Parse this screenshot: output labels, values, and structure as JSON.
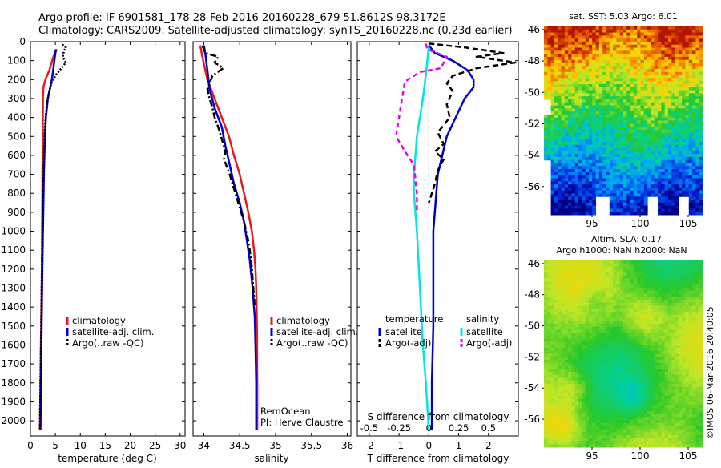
{
  "header": {
    "line1": "Argo profile: IF 6901581_178 28-Feb-2016 20160228_679 51.8612S 98.3172E",
    "line2": "Climatology: CARS2009. Satellite-adjusted climatology: synTS_20160228.nc (0.23d earlier)"
  },
  "colors": {
    "climatology": "#e41a1c",
    "satellite": "#0000cc",
    "argo": "#000000",
    "sal_satellite": "#00e5e5",
    "sal_argo": "#ee00ee"
  },
  "legend": {
    "climatology": "climatology",
    "satellite_adj": "satellite-adj. clim.",
    "argo_raw": "Argo(..raw -QC)",
    "temperature_head": "temperature",
    "salinity_head": "salinity",
    "satellite": "satellite",
    "argo_adj": "Argo(-adj)"
  },
  "credits": {
    "line1": "RemOcean",
    "line2": "PI: Herve Claustre",
    "stamp": "©IMOS 06-Mar-2016 20:40:05"
  },
  "chart_data": [
    {
      "id": "temperature",
      "type": "line",
      "xlabel": "temperature (deg C)",
      "xlim": [
        0,
        31
      ],
      "xticks": [
        "0",
        "5",
        "10",
        "15",
        "20",
        "25",
        "30"
      ],
      "xtick_values": [
        0,
        5,
        10,
        15,
        20,
        25,
        30
      ],
      "ylim": [
        2080,
        0
      ],
      "yticks": [
        0,
        100,
        200,
        300,
        400,
        500,
        600,
        700,
        800,
        900,
        1000,
        1100,
        1200,
        1300,
        1400,
        1500,
        1600,
        1700,
        1800,
        1900,
        2000
      ],
      "series": [
        {
          "name": "climatology",
          "color": "#e41a1c",
          "points": [
            [
              5.3,
              40
            ],
            [
              4.6,
              80
            ],
            [
              3.8,
              150
            ],
            [
              3.0,
              200
            ],
            [
              2.6,
              240
            ],
            [
              2.5,
              300
            ],
            [
              2.45,
              500
            ],
            [
              2.4,
              800
            ],
            [
              2.3,
              1200
            ],
            [
              2.1,
              1600
            ],
            [
              1.9,
              2050
            ]
          ]
        },
        {
          "name": "satellite-adj. clim.",
          "color": "#0000cc",
          "points": [
            [
              5.1,
              40
            ],
            [
              4.9,
              80
            ],
            [
              4.7,
              120
            ],
            [
              4.3,
              200
            ],
            [
              3.9,
              250
            ],
            [
              3.5,
              300
            ],
            [
              3.1,
              400
            ],
            [
              2.9,
              500
            ],
            [
              2.7,
              700
            ],
            [
              2.5,
              1000
            ],
            [
              2.4,
              1200
            ],
            [
              2.2,
              1600
            ],
            [
              2.0,
              2050
            ]
          ]
        },
        {
          "name": "Argo(..raw -QC)",
          "color": "#000000",
          "dash": "2,2",
          "points": [
            [
              6.4,
              15
            ],
            [
              7.1,
              30
            ],
            [
              6.7,
              50
            ],
            [
              6.5,
              80
            ],
            [
              7.1,
              110
            ],
            [
              6.2,
              140
            ],
            [
              5.0,
              180
            ],
            [
              4.2,
              220
            ],
            [
              3.6,
              280
            ],
            [
              3.2,
              350
            ],
            [
              2.9,
              450
            ],
            [
              2.7,
              600
            ],
            [
              2.5,
              800
            ],
            [
              2.4,
              1000
            ],
            [
              2.3,
              1200
            ],
            [
              2.2,
              1400
            ],
            [
              2.0,
              1800
            ],
            [
              1.9,
              2050
            ]
          ]
        }
      ],
      "legend_entries": [
        "climatology",
        "satellite-adj. clim.",
        "Argo(..raw -QC)"
      ]
    },
    {
      "id": "salinity",
      "type": "line",
      "xlabel": "salinity",
      "xlim": [
        33.85,
        36.05
      ],
      "xticks": [
        "34",
        "34.5",
        "35",
        "35.5",
        "36"
      ],
      "xtick_values": [
        34,
        34.5,
        35,
        35.5,
        36
      ],
      "ylim": [
        2080,
        0
      ],
      "series": [
        {
          "name": "climatology",
          "color": "#e41a1c",
          "points": [
            [
              33.95,
              20
            ],
            [
              33.98,
              80
            ],
            [
              34.05,
              200
            ],
            [
              34.15,
              300
            ],
            [
              34.25,
              400
            ],
            [
              34.35,
              500
            ],
            [
              34.42,
              600
            ],
            [
              34.5,
              700
            ],
            [
              34.56,
              800
            ],
            [
              34.62,
              900
            ],
            [
              34.67,
              1000
            ],
            [
              34.7,
              1100
            ],
            [
              34.72,
              1200
            ],
            [
              34.73,
              1300
            ],
            [
              34.74,
              1500
            ],
            [
              34.745,
              1800
            ],
            [
              34.745,
              2050
            ]
          ]
        },
        {
          "name": "satellite-adj. clim.",
          "color": "#0000cc",
          "points": [
            [
              33.98,
              20
            ],
            [
              34.02,
              60
            ],
            [
              34.05,
              150
            ],
            [
              34.08,
              250
            ],
            [
              34.15,
              350
            ],
            [
              34.25,
              450
            ],
            [
              34.3,
              550
            ],
            [
              34.36,
              650
            ],
            [
              34.42,
              750
            ],
            [
              34.5,
              850
            ],
            [
              34.56,
              950
            ],
            [
              34.6,
              1050
            ],
            [
              34.64,
              1150
            ],
            [
              34.68,
              1300
            ],
            [
              34.71,
              1450
            ],
            [
              34.72,
              1600
            ],
            [
              34.73,
              1800
            ],
            [
              34.73,
              2050
            ]
          ]
        },
        {
          "name": "Argo(..raw -QC)",
          "color": "#000000",
          "dash": "8,3,2,3",
          "points": [
            [
              34.0,
              20
            ],
            [
              34.02,
              60
            ],
            [
              34.2,
              80
            ],
            [
              34.15,
              110
            ],
            [
              34.27,
              140
            ],
            [
              34.12,
              180
            ],
            [
              34.05,
              250
            ],
            [
              34.08,
              300
            ],
            [
              34.12,
              350
            ],
            [
              34.15,
              400
            ],
            [
              34.2,
              450
            ],
            [
              34.24,
              500
            ],
            [
              34.3,
              580
            ],
            [
              34.28,
              620
            ],
            [
              34.36,
              700
            ],
            [
              34.4,
              750
            ],
            [
              34.48,
              850
            ],
            [
              34.56,
              950
            ],
            [
              34.62,
              1050
            ],
            [
              34.66,
              1150
            ],
            [
              34.68,
              1250
            ],
            [
              34.71,
              1400
            ]
          ]
        }
      ],
      "legend_entries": [
        "climatology",
        "satellite-adj. clim.",
        "Argo(..raw -QC)"
      ]
    },
    {
      "id": "difference",
      "type": "line",
      "xlabel": "T difference from climatology",
      "xlabel_top": "S difference from climatology",
      "xlim": [
        -2.4,
        3.0
      ],
      "xticks": [
        "-2",
        "-1",
        "0",
        "1",
        "2"
      ],
      "xtick_values": [
        -2,
        -1,
        0,
        1,
        2
      ],
      "x2ticks": [
        "-0.5",
        "-0.25",
        "0",
        "0.25",
        "0.5"
      ],
      "x2tick_values": [
        -0.5,
        -0.25,
        0,
        0.25,
        0.5
      ],
      "ylim": [
        2080,
        0
      ],
      "series": [
        {
          "name": "temperature satellite",
          "color": "#0000cc",
          "points": [
            [
              0,
              20
            ],
            [
              0.2,
              60
            ],
            [
              0.8,
              100
            ],
            [
              1.3,
              150
            ],
            [
              1.5,
              200
            ],
            [
              1.5,
              240
            ],
            [
              1.2,
              300
            ],
            [
              0.9,
              400
            ],
            [
              0.6,
              500
            ],
            [
              0.45,
              600
            ],
            [
              0.3,
              700
            ],
            [
              0.25,
              800
            ],
            [
              0.2,
              900
            ],
            [
              0.15,
              1000
            ],
            [
              0.15,
              1200
            ],
            [
              0.15,
              1500
            ],
            [
              0.1,
              1800
            ],
            [
              0.1,
              2050
            ]
          ]
        },
        {
          "name": "temperature Argo(-adj)",
          "color": "#000000",
          "dash": "7,4",
          "points": [
            [
              0,
              10
            ],
            [
              1.2,
              30
            ],
            [
              2.5,
              60
            ],
            [
              1.6,
              80
            ],
            [
              2.9,
              110
            ],
            [
              1.6,
              140
            ],
            [
              0.8,
              180
            ],
            [
              0.6,
              220
            ],
            [
              0.8,
              260
            ],
            [
              0.6,
              330
            ],
            [
              0.7,
              400
            ],
            [
              0.3,
              480
            ],
            [
              0.5,
              540
            ],
            [
              0.2,
              580
            ],
            [
              0.5,
              620
            ],
            [
              0.3,
              680
            ],
            [
              0.2,
              750
            ],
            [
              0.0,
              850
            ]
          ]
        },
        {
          "name": "salinity satellite",
          "color": "#00e5e5",
          "points": [
            [
              0,
              20
            ],
            [
              -0.05,
              100
            ],
            [
              -0.12,
              200
            ],
            [
              -0.2,
              300
            ],
            [
              -0.3,
              400
            ],
            [
              -0.4,
              500
            ],
            [
              -0.45,
              600
            ],
            [
              -0.5,
              700
            ],
            [
              -0.5,
              800
            ],
            [
              -0.4,
              1000
            ],
            [
              -0.3,
              1300
            ],
            [
              -0.2,
              1600
            ],
            [
              -0.1,
              1800
            ],
            [
              0,
              2050
            ]
          ]
        },
        {
          "name": "salinity Argo(-adj)",
          "color": "#ee00ee",
          "dash": "6,4",
          "points": [
            [
              -0.1,
              10
            ],
            [
              -0.05,
              40
            ],
            [
              0.6,
              80
            ],
            [
              0.4,
              140
            ],
            [
              -0.3,
              160
            ],
            [
              -0.8,
              210
            ],
            [
              -0.9,
              300
            ],
            [
              -1.0,
              400
            ],
            [
              -1.1,
              500
            ],
            [
              -0.8,
              580
            ],
            [
              -0.5,
              650
            ],
            [
              -0.4,
              800
            ],
            [
              -0.4,
              900
            ]
          ]
        }
      ],
      "legend_entries": [
        "temperature",
        "satellite",
        "Argo(-adj)",
        "salinity",
        "satellite",
        "Argo(-adj)"
      ]
    },
    {
      "id": "sst_map",
      "type": "heatmap",
      "title": "sat. SST: 5.03 Argo: 6.01",
      "xlim": [
        90,
        106.5
      ],
      "ylim": [
        -57.8,
        -45.8
      ],
      "xticks": [
        "95",
        "100",
        "105"
      ],
      "xtick_values": [
        95,
        100,
        105
      ],
      "yticks": [
        "-46",
        "-48",
        "-50",
        "-52",
        "-54",
        "-56"
      ],
      "ytick_values": [
        -46,
        -48,
        -50,
        -52,
        -54,
        -56
      ]
    },
    {
      "id": "sla_map",
      "type": "heatmap",
      "title": "Altim. SLA: 0.17",
      "subtitle": "Argo h1000: NaN h2000: NaN",
      "xlim": [
        90,
        106.5
      ],
      "ylim": [
        -57.8,
        -45.8
      ],
      "xticks": [
        "95",
        "100",
        "105"
      ],
      "xtick_values": [
        95,
        100,
        105
      ],
      "yticks": [
        "-46",
        "-48",
        "-50",
        "-52",
        "-54",
        "-56"
      ],
      "ytick_values": [
        -46,
        -48,
        -50,
        -52,
        -54,
        -56
      ]
    }
  ]
}
